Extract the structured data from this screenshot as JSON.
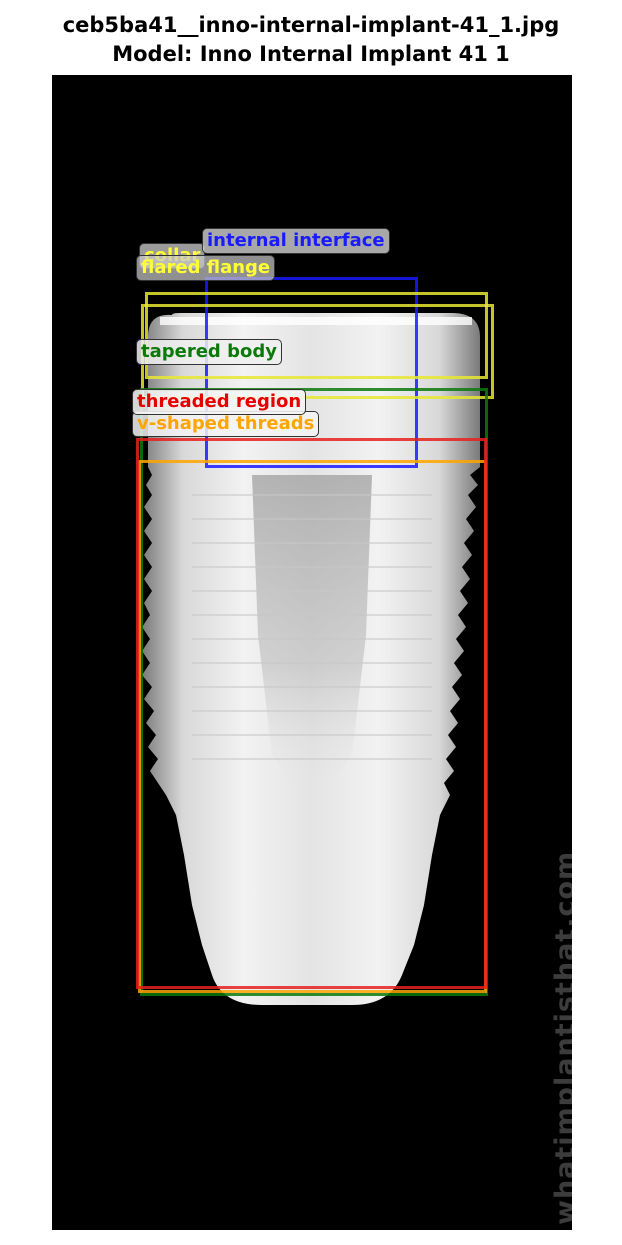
{
  "header": {
    "filename": "ceb5ba41__inno-internal-implant-41_1.jpg",
    "model_line": "Model: Inno Internal Implant 41 1"
  },
  "image": {
    "watermark": "whatimplantisthat.com"
  },
  "annotations": [
    {
      "label": "internal interface",
      "color": "#1a1aff"
    },
    {
      "label": "collar",
      "color": "#ffff33"
    },
    {
      "label": "flared flange",
      "color": "#ffff33"
    },
    {
      "label": "tapered body",
      "color": "#0b7a0b"
    },
    {
      "label": "threaded region",
      "color": "#e60000"
    },
    {
      "label": "v-shaped threads",
      "color": "#ffa500"
    }
  ]
}
